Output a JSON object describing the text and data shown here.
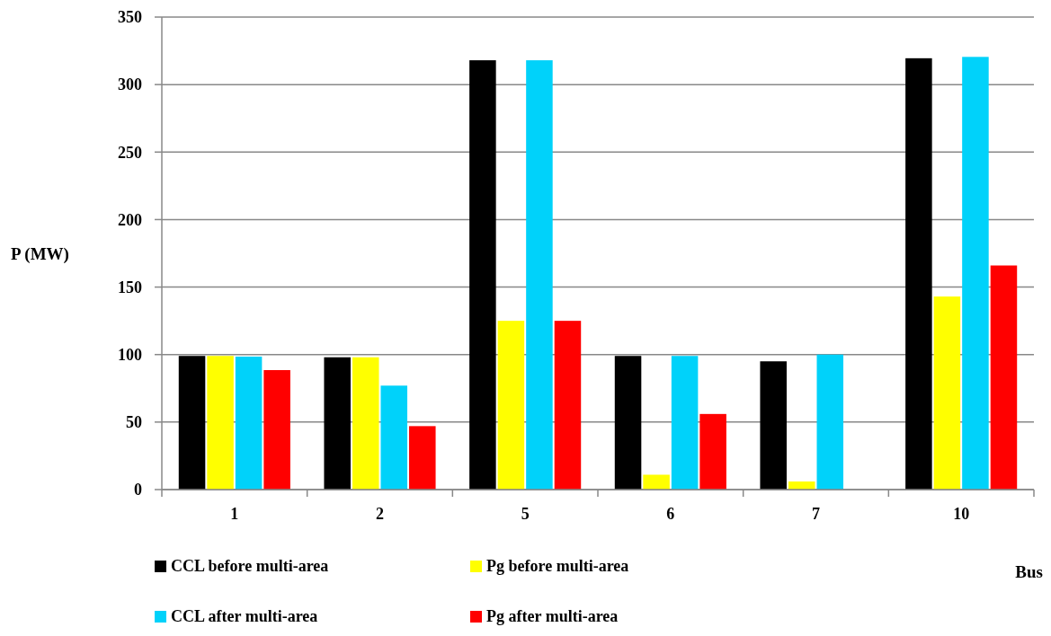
{
  "chart_data": {
    "type": "bar",
    "xlabel": "Bus",
    "ylabel": "P (MW)",
    "categories": [
      "1",
      "2",
      "5",
      "6",
      "7",
      "10"
    ],
    "series": [
      {
        "name": "CCL before multi-area",
        "color": "#000000",
        "values": [
          99,
          98,
          318,
          99,
          95,
          319.5
        ]
      },
      {
        "name": "Pg before multi-area",
        "color": "#ffff00",
        "values": [
          99,
          98,
          125,
          11,
          6,
          143
        ]
      },
      {
        "name": "CCL after multi-area",
        "color": "#00d2fa",
        "values": [
          98.5,
          77,
          318,
          99,
          100,
          320.5
        ]
      },
      {
        "name": "Pg after multi-area",
        "color": "#ff0000",
        "values": [
          88.5,
          47,
          125,
          56,
          0,
          166
        ]
      }
    ],
    "ylim": [
      0,
      350
    ],
    "yticks": [
      0,
      50,
      100,
      150,
      200,
      250,
      300,
      350
    ],
    "grid": "y",
    "legend": "bottom"
  }
}
